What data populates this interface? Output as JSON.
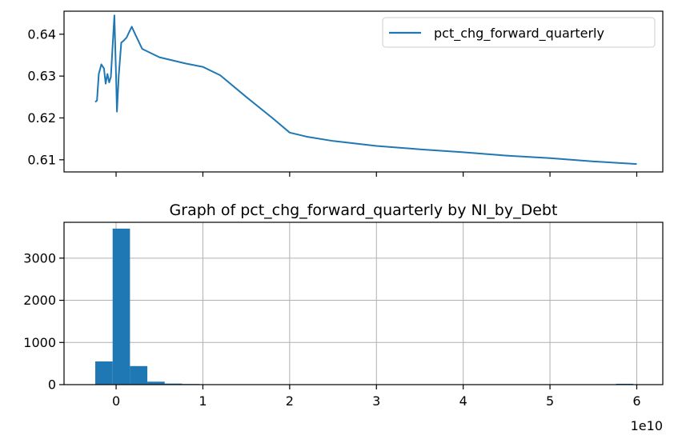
{
  "chart_data": [
    {
      "type": "line",
      "title": "",
      "xlabel": "",
      "ylabel": "",
      "xlim": [
        -6000000000.0,
        63000000000.0
      ],
      "ylim": [
        0.6071,
        0.6455
      ],
      "x_ticks": [
        0,
        10000000000.0,
        20000000000.0,
        30000000000.0,
        40000000000.0,
        50000000000.0,
        60000000000.0
      ],
      "y_ticks": [
        0.61,
        0.62,
        0.63,
        0.64
      ],
      "y_tick_labels": [
        "0.61",
        "0.62",
        "0.63",
        "0.64"
      ],
      "grid": false,
      "legend_position": "top-right",
      "series": [
        {
          "name": "pct_chg_forward_quarterly",
          "color": "#1f77b4",
          "points": [
            [
              -2400000000.0,
              0.6238
            ],
            [
              -2200000000.0,
              0.6242
            ],
            [
              -2000000000.0,
              0.6305
            ],
            [
              -1700000000.0,
              0.6328
            ],
            [
              -1400000000.0,
              0.6318
            ],
            [
              -1200000000.0,
              0.6282
            ],
            [
              -1000000000.0,
              0.6305
            ],
            [
              -800000000.0,
              0.6285
            ],
            [
              -600000000.0,
              0.6298
            ],
            [
              -400000000.0,
              0.6372
            ],
            [
              -200000000.0,
              0.6445
            ],
            [
              0.0,
              0.63
            ],
            [
              100000000.0,
              0.6215
            ],
            [
              300000000.0,
              0.63
            ],
            [
              600000000.0,
              0.638
            ],
            [
              900000000.0,
              0.6385
            ],
            [
              1200000000.0,
              0.6392
            ],
            [
              1500000000.0,
              0.6405
            ],
            [
              1800000000.0,
              0.6418
            ],
            [
              2200000000.0,
              0.64
            ],
            [
              3000000000.0,
              0.6365
            ],
            [
              5000000000.0,
              0.6345
            ],
            [
              8000000000.0,
              0.633
            ],
            [
              10000000000.0,
              0.6322
            ],
            [
              12000000000.0,
              0.6302
            ],
            [
              15000000000.0,
              0.625
            ],
            [
              18000000000.0,
              0.62
            ],
            [
              20000000000.0,
              0.6165
            ],
            [
              22000000000.0,
              0.6155
            ],
            [
              25000000000.0,
              0.6145
            ],
            [
              30000000000.0,
              0.6133
            ],
            [
              35000000000.0,
              0.6125
            ],
            [
              40000000000.0,
              0.6118
            ],
            [
              45000000000.0,
              0.611
            ],
            [
              50000000000.0,
              0.6104
            ],
            [
              55000000000.0,
              0.6096
            ],
            [
              60000000000.0,
              0.609
            ]
          ]
        }
      ]
    },
    {
      "type": "bar",
      "title": "Graph of pct_chg_forward_quarterly by NI_by_Debt",
      "xlabel": "",
      "ylabel": "",
      "xlim": [
        -6000000000.0,
        63000000000.0
      ],
      "ylim": [
        0,
        3850
      ],
      "x_ticks": [
        0,
        10000000000.0,
        20000000000.0,
        30000000000.0,
        40000000000.0,
        50000000000.0,
        60000000000.0
      ],
      "x_tick_labels": [
        "0",
        "1",
        "2",
        "3",
        "4",
        "5",
        "6"
      ],
      "x_offset_label": "1e10",
      "y_ticks": [
        0,
        1000,
        2000,
        3000
      ],
      "y_tick_labels": [
        "0",
        "1000",
        "2000",
        "3000"
      ],
      "grid": true,
      "color": "#1f77b4",
      "bin_edges": [
        -2400000000.0,
        -400000000.0,
        1600000000.0,
        3600000000.0,
        5600000000.0,
        7600000000.0,
        9600000000.0,
        11600000000.0,
        13600000000.0,
        15600000000.0,
        17600000000.0,
        19600000000.0,
        21600000000.0,
        23600000000.0,
        25600000000.0,
        27600000000.0,
        29600000000.0,
        31600000000.0,
        33600000000.0,
        35600000000.0,
        37600000000.0,
        39600000000.0,
        41600000000.0,
        43600000000.0,
        45600000000.0,
        47600000000.0,
        49600000000.0,
        51600000000.0,
        53600000000.0,
        55600000000.0,
        57600000000.0,
        59600000000.0
      ],
      "values": [
        550,
        3700,
        440,
        70,
        25,
        15,
        5,
        3,
        2,
        2,
        1,
        1,
        1,
        1,
        1,
        1,
        0,
        0,
        0,
        0,
        0,
        0,
        0,
        0,
        0,
        0,
        0,
        0,
        0,
        0,
        20
      ]
    }
  ]
}
